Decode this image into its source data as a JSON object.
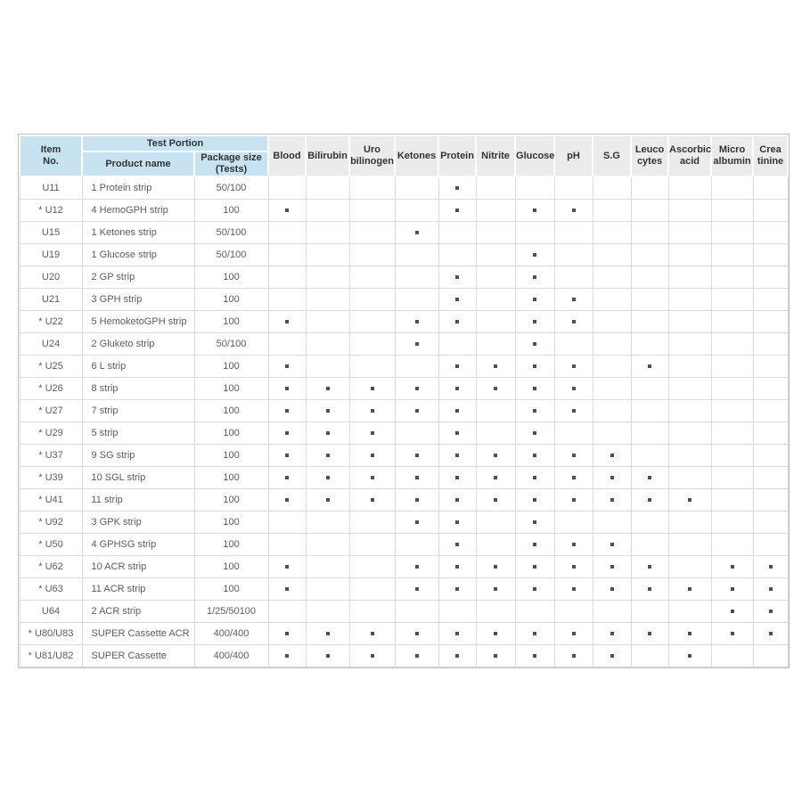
{
  "colors": {
    "header_blue": "#c7e2f1",
    "header_gray": "#ebebeb",
    "marker_color": "#4f4f4f",
    "body_text": "#5c5c5c",
    "header_text": "#333333"
  },
  "marker": {
    "shape": "filled-square"
  },
  "table": {
    "header": {
      "item_no": "Item\nNo.",
      "test_portion": "Test Portion",
      "product_name": "Product name",
      "package_size": "Package size\n(Tests)",
      "test_columns": [
        "Blood",
        "Bilirubin",
        "Uro bilinogen",
        "Ketones",
        "Protein",
        "Nitrite",
        "Glucose",
        "pH",
        "S.G",
        "Leuco cytes",
        "Ascorbic acid",
        "Micro albumin",
        "Crea tinine"
      ]
    },
    "rows": [
      {
        "item": "U11",
        "product": "1 Protein strip",
        "package": "50/100",
        "tests": [
          "Protein"
        ]
      },
      {
        "item": "* U12",
        "product": "4 HemoGPH strip",
        "package": "100",
        "tests": [
          "Blood",
          "Protein",
          "Glucose",
          "pH"
        ]
      },
      {
        "item": "U15",
        "product": "1 Ketones strip",
        "package": "50/100",
        "tests": [
          "Ketones"
        ]
      },
      {
        "item": "U19",
        "product": "1 Glucose strip",
        "package": "50/100",
        "tests": [
          "Glucose"
        ]
      },
      {
        "item": "U20",
        "product": "2 GP strip",
        "package": "100",
        "tests": [
          "Protein",
          "Glucose"
        ]
      },
      {
        "item": "U21",
        "product": "3 GPH strip",
        "package": "100",
        "tests": [
          "Protein",
          "Glucose",
          "pH"
        ]
      },
      {
        "item": "* U22",
        "product": "5 HemoketoGPH strip",
        "package": "100",
        "tests": [
          "Blood",
          "Ketones",
          "Protein",
          "Glucose",
          "pH"
        ]
      },
      {
        "item": "U24",
        "product": "2 Gluketo strip",
        "package": "50/100",
        "tests": [
          "Ketones",
          "Glucose"
        ]
      },
      {
        "item": "* U25",
        "product": "6 L strip",
        "package": "100",
        "tests": [
          "Blood",
          "Protein",
          "Nitrite",
          "Glucose",
          "pH",
          "Leuco cytes"
        ]
      },
      {
        "item": "* U26",
        "product": "8 strip",
        "package": "100",
        "tests": [
          "Blood",
          "Bilirubin",
          "Uro bilinogen",
          "Ketones",
          "Protein",
          "Nitrite",
          "Glucose",
          "pH"
        ]
      },
      {
        "item": "* U27",
        "product": "7 strip",
        "package": "100",
        "tests": [
          "Blood",
          "Bilirubin",
          "Uro bilinogen",
          "Ketones",
          "Protein",
          "Glucose",
          "pH"
        ]
      },
      {
        "item": "* U29",
        "product": "5 strip",
        "package": "100",
        "tests": [
          "Blood",
          "Bilirubin",
          "Uro bilinogen",
          "Protein",
          "Glucose"
        ]
      },
      {
        "item": "* U37",
        "product": "9 SG strip",
        "package": "100",
        "tests": [
          "Blood",
          "Bilirubin",
          "Uro bilinogen",
          "Ketones",
          "Protein",
          "Nitrite",
          "Glucose",
          "pH",
          "S.G"
        ]
      },
      {
        "item": "* U39",
        "product": "10 SGL strip",
        "package": "100",
        "tests": [
          "Blood",
          "Bilirubin",
          "Uro bilinogen",
          "Ketones",
          "Protein",
          "Nitrite",
          "Glucose",
          "pH",
          "S.G",
          "Leuco cytes"
        ]
      },
      {
        "item": "* U41",
        "product": "11 strip",
        "package": "100",
        "tests": [
          "Blood",
          "Bilirubin",
          "Uro bilinogen",
          "Ketones",
          "Protein",
          "Nitrite",
          "Glucose",
          "pH",
          "S.G",
          "Leuco cytes",
          "Ascorbic acid"
        ]
      },
      {
        "item": "* U92",
        "product": "3 GPK strip",
        "package": "100",
        "tests": [
          "Ketones",
          "Protein",
          "Glucose"
        ]
      },
      {
        "item": "* U50",
        "product": "4 GPHSG strip",
        "package": "100",
        "tests": [
          "Protein",
          "Glucose",
          "pH",
          "S.G"
        ]
      },
      {
        "item": "* U62",
        "product": "10 ACR strip",
        "package": "100",
        "tests": [
          "Blood",
          "Ketones",
          "Protein",
          "Nitrite",
          "Glucose",
          "pH",
          "S.G",
          "Leuco cytes",
          "Micro albumin",
          "Crea tinine"
        ]
      },
      {
        "item": "* U63",
        "product": "11 ACR strip",
        "package": "100",
        "tests": [
          "Blood",
          "Ketones",
          "Protein",
          "Nitrite",
          "Glucose",
          "pH",
          "S.G",
          "Leuco cytes",
          "Ascorbic acid",
          "Micro albumin",
          "Crea tinine"
        ]
      },
      {
        "item": "U64",
        "product": "2 ACR strip",
        "package": "1/25/50100",
        "tests": [
          "Micro albumin",
          "Crea tinine"
        ]
      },
      {
        "item": "* U80/U83",
        "product": "SUPER Cassette ACR",
        "package": "400/400",
        "tests": [
          "Blood",
          "Bilirubin",
          "Uro bilinogen",
          "Ketones",
          "Protein",
          "Nitrite",
          "Glucose",
          "pH",
          "S.G",
          "Leuco cytes",
          "Ascorbic acid",
          "Micro albumin",
          "Crea tinine"
        ]
      },
      {
        "item": "* U81/U82",
        "product": "SUPER Cassette",
        "package": "400/400",
        "tests": [
          "Blood",
          "Bilirubin",
          "Uro bilinogen",
          "Ketones",
          "Protein",
          "Nitrite",
          "Glucose",
          "pH",
          "S.G",
          "Ascorbic acid"
        ]
      }
    ]
  }
}
